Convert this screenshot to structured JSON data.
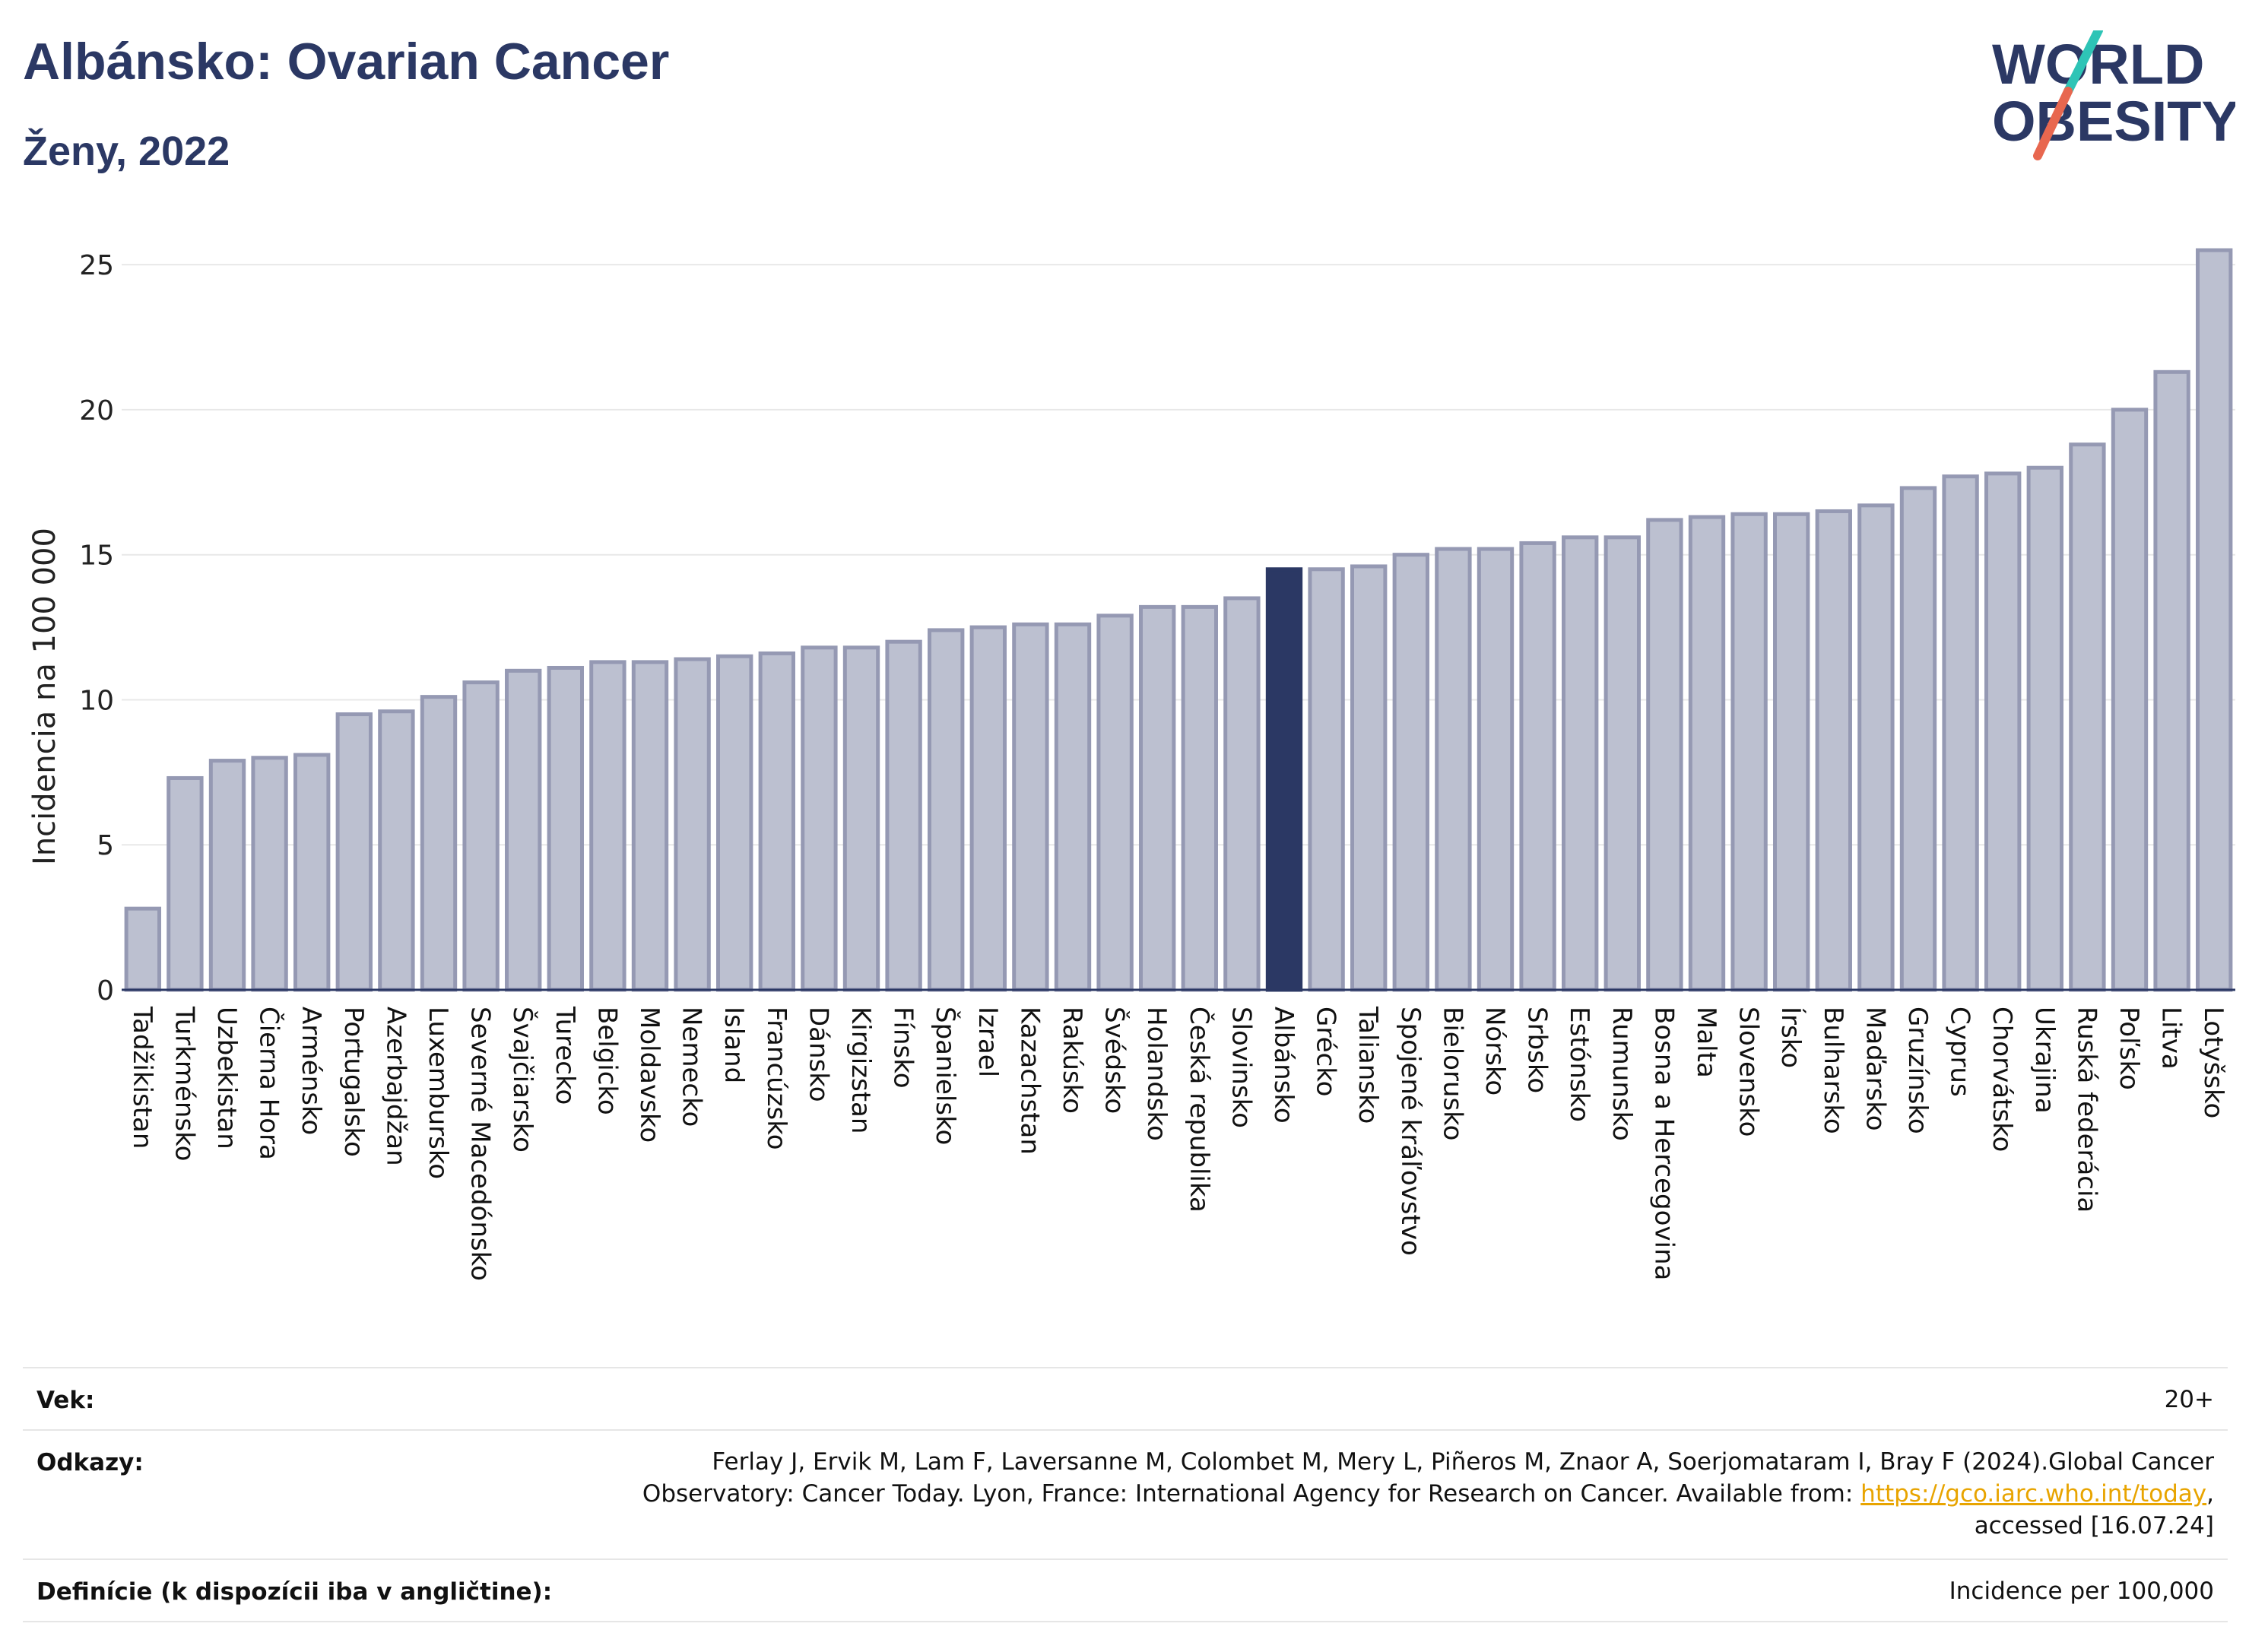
{
  "header": {
    "title": "Albánsko: Ovarian Cancer",
    "subtitle": "Ženy, 2022"
  },
  "logo": {
    "line1": "WORLD",
    "line2": "OBESITY",
    "slash_colors": [
      "#2ec4b6",
      "#e8674f"
    ]
  },
  "chart_data": {
    "type": "bar",
    "ylabel": "Incidencia na 100 000",
    "ylim": [
      0,
      26
    ],
    "yticks": [
      0,
      5,
      10,
      15,
      20,
      25
    ],
    "grid": true,
    "highlight": "Albánsko",
    "colors": {
      "bar": "#bcc0d0",
      "bar_edge": "#9599b3",
      "highlight": "#2b3864"
    },
    "categories": [
      "Tadžikistan",
      "Turkménsko",
      "Uzbekistan",
      "Čierna Hora",
      "Arménsko",
      "Portugalsko",
      "Azerbajdžan",
      "Luxembursko",
      "Severné Macedónsko",
      "Švajčiarsko",
      "Turecko",
      "Belgicko",
      "Moldavsko",
      "Nemecko",
      "Island",
      "Francúzsko",
      "Dánsko",
      "Kirgizstan",
      "Fínsko",
      "Španielsko",
      "Izrael",
      "Kazachstan",
      "Rakúsko",
      "Švédsko",
      "Holandsko",
      "Česká republika",
      "Slovinsko",
      "Albánsko",
      "Grécko",
      "Taliansko",
      "Spojené kráľovstvo",
      "Bielorusko",
      "Nórsko",
      "Srbsko",
      "Estónsko",
      "Rumunsko",
      "Bosna a Hercegovina",
      "Malta",
      "Slovensko",
      "Írsko",
      "Bulharsko",
      "Maďarsko",
      "Gruzínsko",
      "Cyprus",
      "Chorvátsko",
      "Ukrajina",
      "Ruská federácia",
      "Poľsko",
      "Litva",
      "Lotyšsko"
    ],
    "values": [
      2.8,
      7.3,
      7.9,
      8.0,
      8.1,
      9.5,
      9.6,
      10.1,
      10.6,
      11.0,
      11.1,
      11.3,
      11.3,
      11.4,
      11.5,
      11.6,
      11.8,
      11.8,
      12.0,
      12.4,
      12.5,
      12.6,
      12.6,
      12.9,
      13.2,
      13.2,
      13.5,
      14.5,
      14.5,
      14.6,
      15.0,
      15.2,
      15.2,
      15.4,
      15.6,
      15.6,
      16.2,
      16.3,
      16.4,
      16.4,
      16.5,
      16.7,
      17.3,
      17.7,
      17.8,
      18.0,
      18.8,
      20.0,
      21.3,
      25.5
    ]
  },
  "info": {
    "age_label": "Vek:",
    "age_value": "20+",
    "refs_label": "Odkazy:",
    "refs_line1": "Ferlay J, Ervik M, Lam F, Laversanne M, Colombet M, Mery L, Piñeros M, Znaor A, Soerjomataram I, Bray F (2024).Global Cancer",
    "refs_line2_pre": "Observatory: Cancer Today. Lyon, France: International Agency for Research on Cancer. Available from: ",
    "refs_link": "https://gco.iarc.who.int/today",
    "refs_line2_post": ",",
    "refs_line3": "accessed [16.07.24]",
    "def_label": "Definície (k dispozícii iba v angličtine):",
    "def_value": "Incidence per 100,000"
  }
}
